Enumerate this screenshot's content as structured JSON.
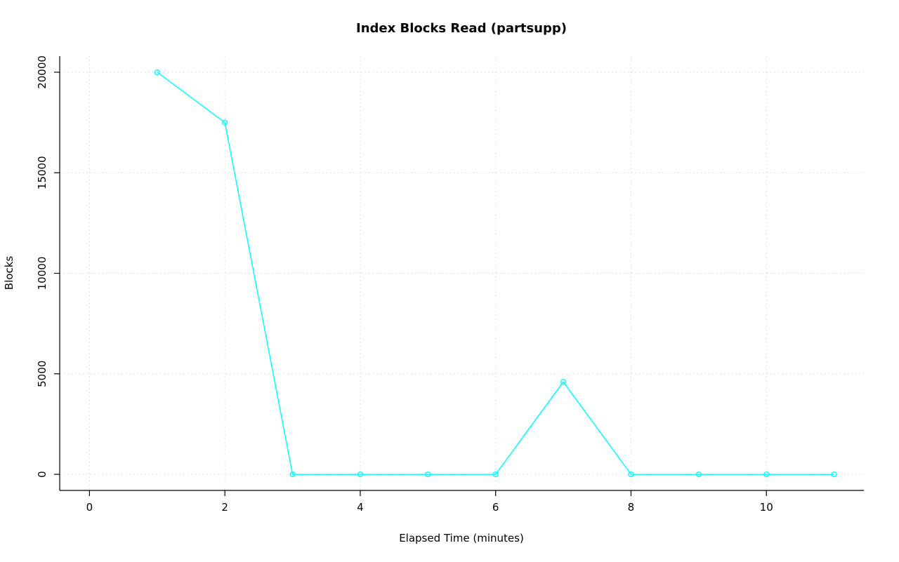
{
  "page": {
    "background": "#FFFFFF"
  },
  "chart_data": {
    "type": "line",
    "title": "Index Blocks Read (partsupp)",
    "xlabel": "Elapsed Time (minutes)",
    "ylabel": "Blocks",
    "x": [
      1,
      2,
      3,
      4,
      5,
      6,
      7,
      8,
      9,
      10,
      11
    ],
    "series": [
      {
        "name": "index-blocks-read-partsupp",
        "values": [
          20000,
          17500,
          0,
          0,
          0,
          0,
          4600,
          0,
          0,
          0,
          0
        ]
      }
    ],
    "xlim": [
      -0.44,
      11.44
    ],
    "ylim": [
      -800,
      20800
    ],
    "x_ticks": [
      "0",
      "2",
      "4",
      "6",
      "8",
      "10"
    ],
    "x_tick_values": [
      0,
      2,
      4,
      6,
      8,
      10
    ],
    "y_ticks": [
      "0",
      "5000",
      "10000",
      "15000",
      "20000"
    ],
    "y_tick_values": [
      0,
      5000,
      10000,
      15000,
      20000
    ],
    "grid": "dotted",
    "legend": "none",
    "marker": "open-circle",
    "colors": {
      "line": "#00FFFF",
      "grid": "#D6D6D6",
      "axis": "#000000",
      "text": "#000000",
      "background": "#FFFFFF"
    }
  }
}
